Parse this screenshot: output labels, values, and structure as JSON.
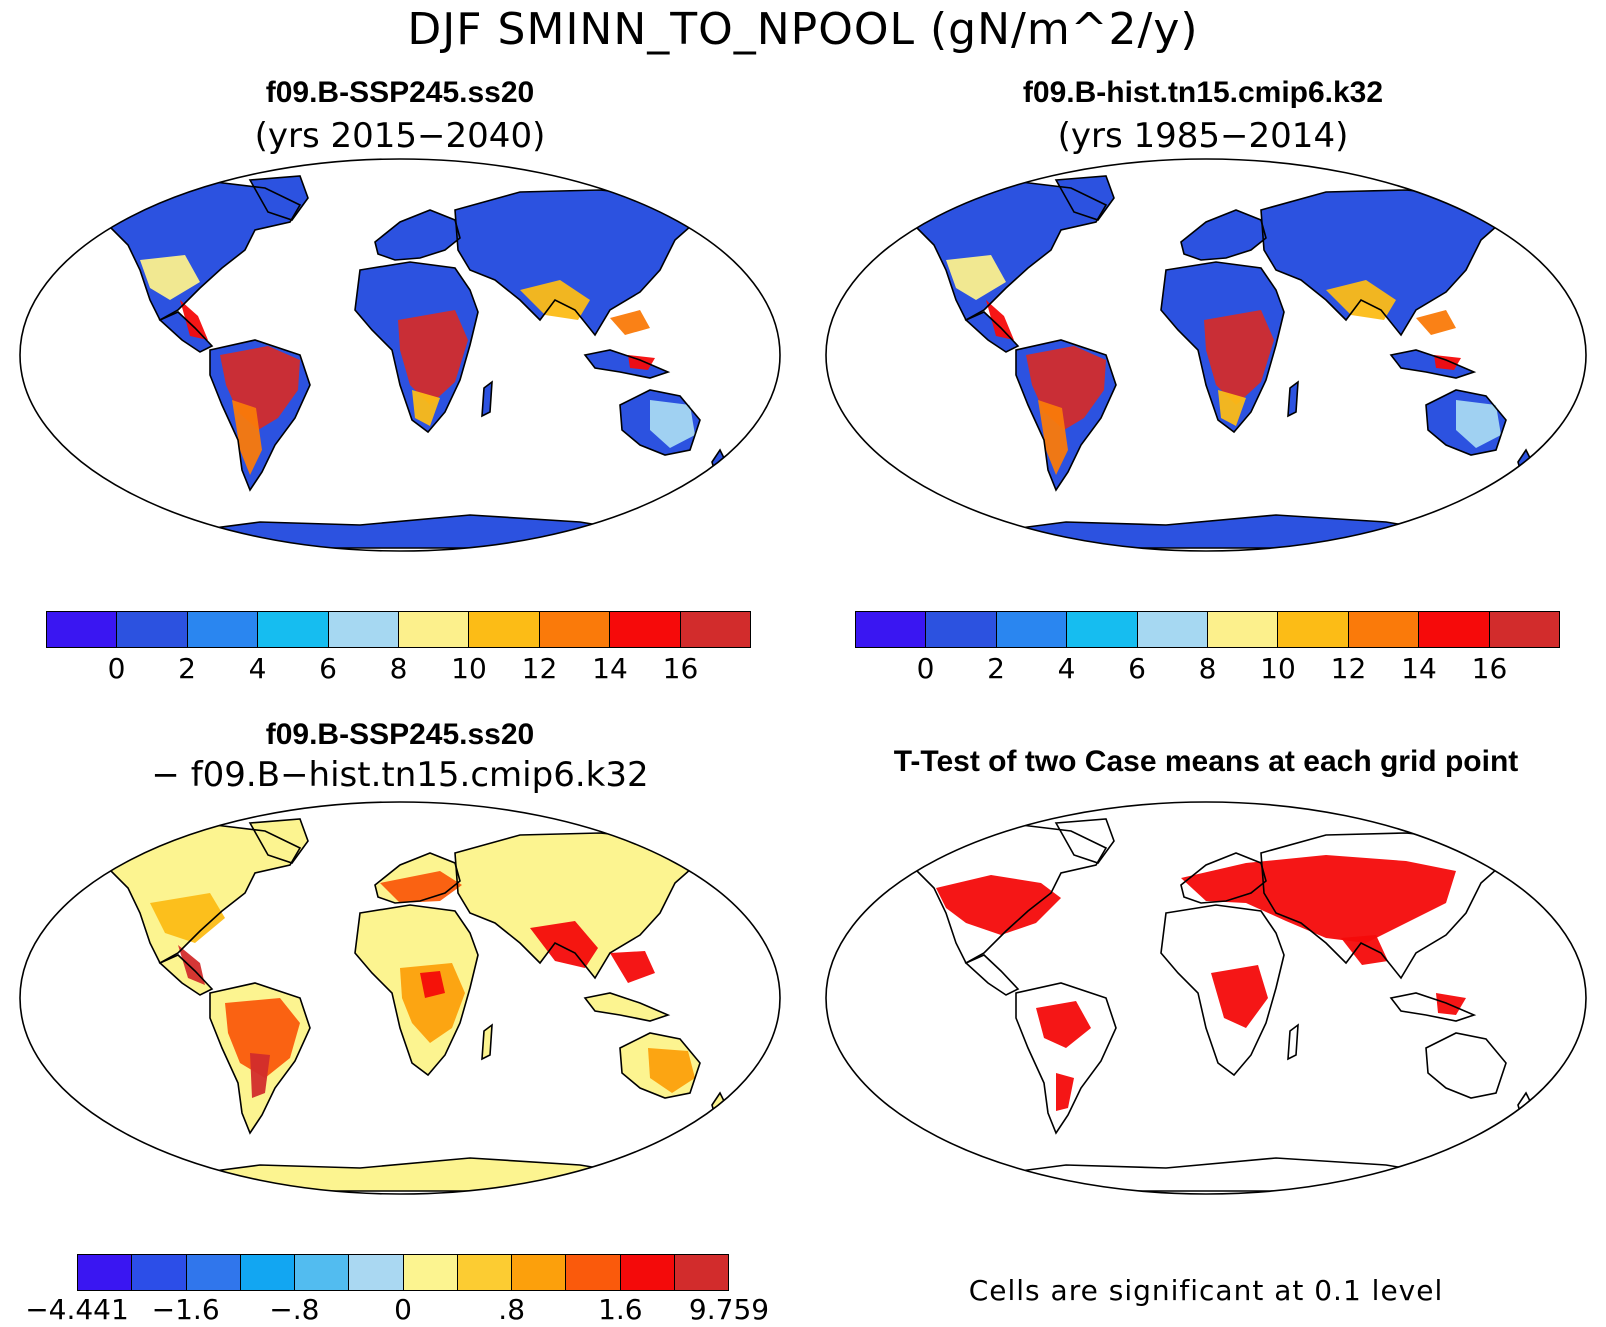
{
  "main_title": "DJF SMINN_TO_NPOOL (gN/m^2/y)",
  "panels": [
    {
      "name": "panel-ssp245",
      "title": "f09.B-SSP245.ss20",
      "subtitle": "(yrs 2015−2040)",
      "scheme": "abs",
      "colorbar": {
        "colors": [
          "#3a16f2",
          "#2c52e0",
          "#2a86f0",
          "#16bdf0",
          "#a6d8f2",
          "#fcf08c",
          "#fcbc16",
          "#fa7a0a",
          "#f60a0a",
          "#d22c2c"
        ],
        "labels": [
          "0",
          "2",
          "4",
          "6",
          "8",
          "10",
          "12",
          "14",
          "16"
        ]
      }
    },
    {
      "name": "panel-hist",
      "title": "f09.B-hist.tn15.cmip6.k32",
      "subtitle": "(yrs 1985−2014)",
      "scheme": "abs",
      "colorbar": {
        "colors": [
          "#3a16f2",
          "#2c52e0",
          "#2a86f0",
          "#16bdf0",
          "#a6d8f2",
          "#fcf08c",
          "#fcbc16",
          "#fa7a0a",
          "#f60a0a",
          "#d22c2c"
        ],
        "labels": [
          "0",
          "2",
          "4",
          "6",
          "8",
          "10",
          "12",
          "14",
          "16"
        ]
      }
    },
    {
      "name": "panel-difference",
      "title": "f09.B-SSP245.ss20",
      "subtitle": "− f09.B−hist.tn15.cmip6.k32",
      "scheme": "diff",
      "colorbar": {
        "colors": [
          "#3a16f2",
          "#2c4ee8",
          "#3076ec",
          "#12a6f2",
          "#52bcf0",
          "#aad8f2",
          "#fcf490",
          "#fccc32",
          "#fca00c",
          "#fa5a0c",
          "#f40a0a",
          "#d22c2c"
        ],
        "labels": [
          "−4.441",
          "−1.6",
          "−.8",
          "0",
          ".8",
          "1.6",
          "9.759"
        ]
      }
    },
    {
      "name": "panel-ttest",
      "title": "T-Test of two Case means at each grid point",
      "subtitle": "",
      "scheme": "ttest",
      "note": "Cells are significant at 0.1 level"
    }
  ]
}
